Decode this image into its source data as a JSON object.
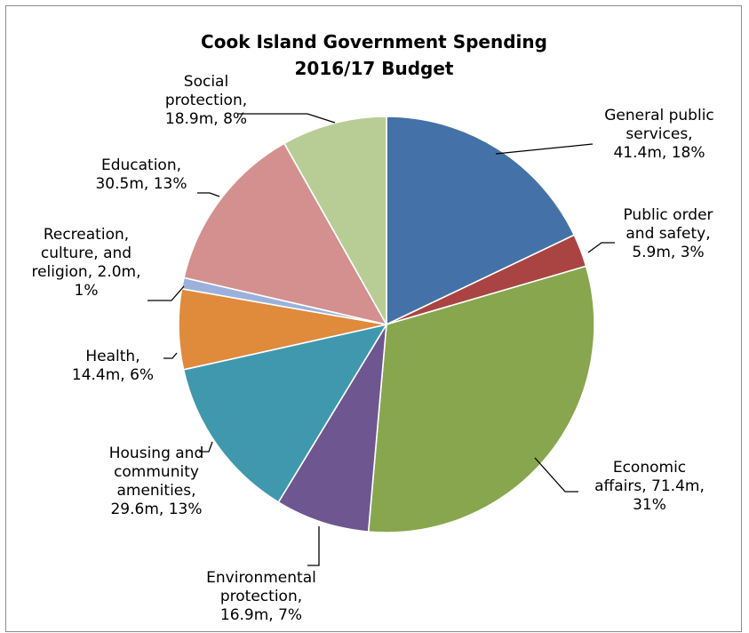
{
  "chart_data": {
    "type": "pie",
    "title": [
      "Cook Island Government Spending",
      "2016/17 Budget"
    ],
    "start_angle_deg": 0,
    "direction": "clockwise",
    "slices": [
      {
        "name": "General public services",
        "value": 41.4,
        "percent": 18,
        "color": "#4472a8",
        "label": [
          "General public",
          "services,",
          "41.4m, 18%"
        ]
      },
      {
        "name": "Public order and safety",
        "value": 5.9,
        "percent": 3,
        "color": "#a94442",
        "label": [
          "Public order",
          "and safety,",
          "5.9m, 3%"
        ]
      },
      {
        "name": "Economic affairs",
        "value": 71.4,
        "percent": 31,
        "color": "#87a64d",
        "label": [
          "Economic",
          "affairs, 71.4m,",
          "31%"
        ]
      },
      {
        "name": "Environmental protection",
        "value": 16.9,
        "percent": 7,
        "color": "#6e5690",
        "label": [
          "Environmental",
          "protection,",
          "16.9m, 7%"
        ]
      },
      {
        "name": "Housing and community amenities",
        "value": 29.6,
        "percent": 13,
        "color": "#3f98ae",
        "label": [
          "Housing and",
          "community",
          "amenities,",
          "29.6m, 13%"
        ]
      },
      {
        "name": "Health",
        "value": 14.4,
        "percent": 6,
        "color": "#e08a3c",
        "label": [
          "Health,",
          "14.4m, 6%"
        ]
      },
      {
        "name": "Recreation, culture, and religion",
        "value": 2.0,
        "percent": 1,
        "color": "#9bb1db",
        "label": [
          "Recreation,",
          "culture, and",
          "religion, 2.0m,",
          "1%"
        ]
      },
      {
        "name": "Education",
        "value": 30.5,
        "percent": 13,
        "color": "#d3908f",
        "label": [
          "Education,",
          "30.5m, 13%"
        ]
      },
      {
        "name": "Social protection",
        "value": 18.9,
        "percent": 8,
        "color": "#b8cd96",
        "label": [
          "Social",
          "protection,",
          "18.9m, 8%"
        ]
      }
    ]
  }
}
